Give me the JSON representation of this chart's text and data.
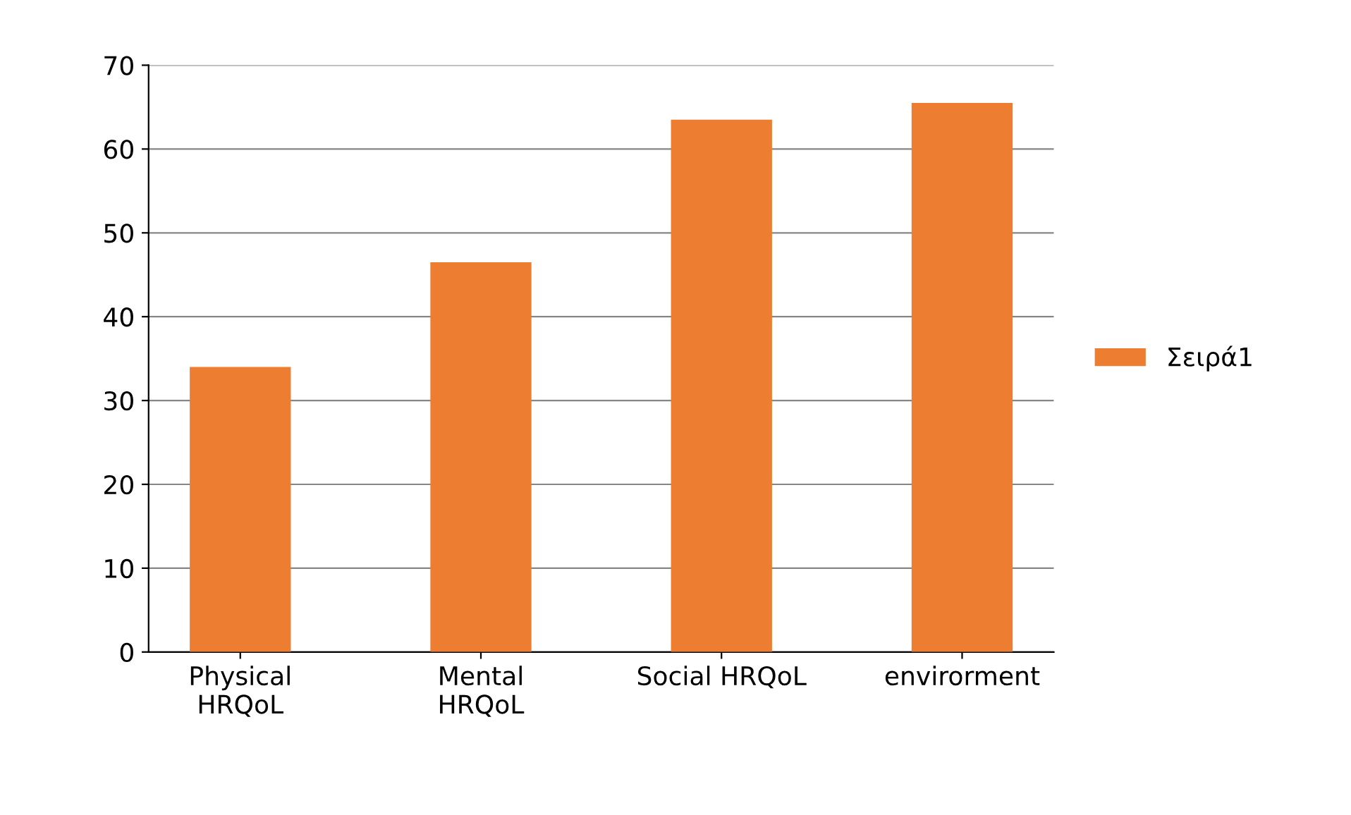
{
  "chart_data": {
    "type": "bar",
    "categories": [
      "Physical\nHRQoL",
      "Mental\nHRQoL",
      "Social HRQoL",
      "envirorment"
    ],
    "series": [
      {
        "name": "Σειρά1",
        "color": "#ed7d31",
        "values": [
          34,
          46.5,
          63.5,
          65.5
        ]
      }
    ],
    "ylim": [
      0,
      70
    ],
    "yticks": [
      0,
      10,
      20,
      30,
      40,
      50,
      60,
      70
    ],
    "grid": "y",
    "legend": "right"
  }
}
